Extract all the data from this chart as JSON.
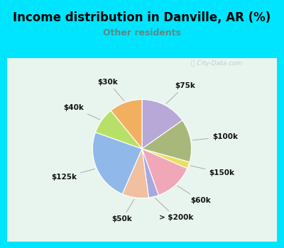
{
  "title": "Income distribution in Danville, AR (%)",
  "subtitle": "Other residents",
  "title_color": "#000000",
  "subtitle_color": "#5a8a8a",
  "bg_cyan": "#00e5ff",
  "bg_panel": "#e8f5ee",
  "watermark": "ⓘ City-Data.com",
  "slices": [
    {
      "label": "$75k",
      "value": 14,
      "color": "#b8a8d8"
    },
    {
      "label": "$100k",
      "value": 13,
      "color": "#a8b87a"
    },
    {
      "label": "$150k",
      "value": 2,
      "color": "#e8e060"
    },
    {
      "label": "$60k",
      "value": 12,
      "color": "#f0a8b8"
    },
    {
      "label": "> $200k",
      "value": 3,
      "color": "#a8a8e0"
    },
    {
      "label": "$50k",
      "value": 8,
      "color": "#f0c0a0"
    },
    {
      "label": "$125k",
      "value": 22,
      "color": "#90b8e8"
    },
    {
      "label": "$40k",
      "value": 8,
      "color": "#b8e068"
    },
    {
      "label": "$30k",
      "value": 10,
      "color": "#f0b060"
    }
  ],
  "title_fontsize": 12,
  "subtitle_fontsize": 9,
  "label_fontsize": 7.5
}
